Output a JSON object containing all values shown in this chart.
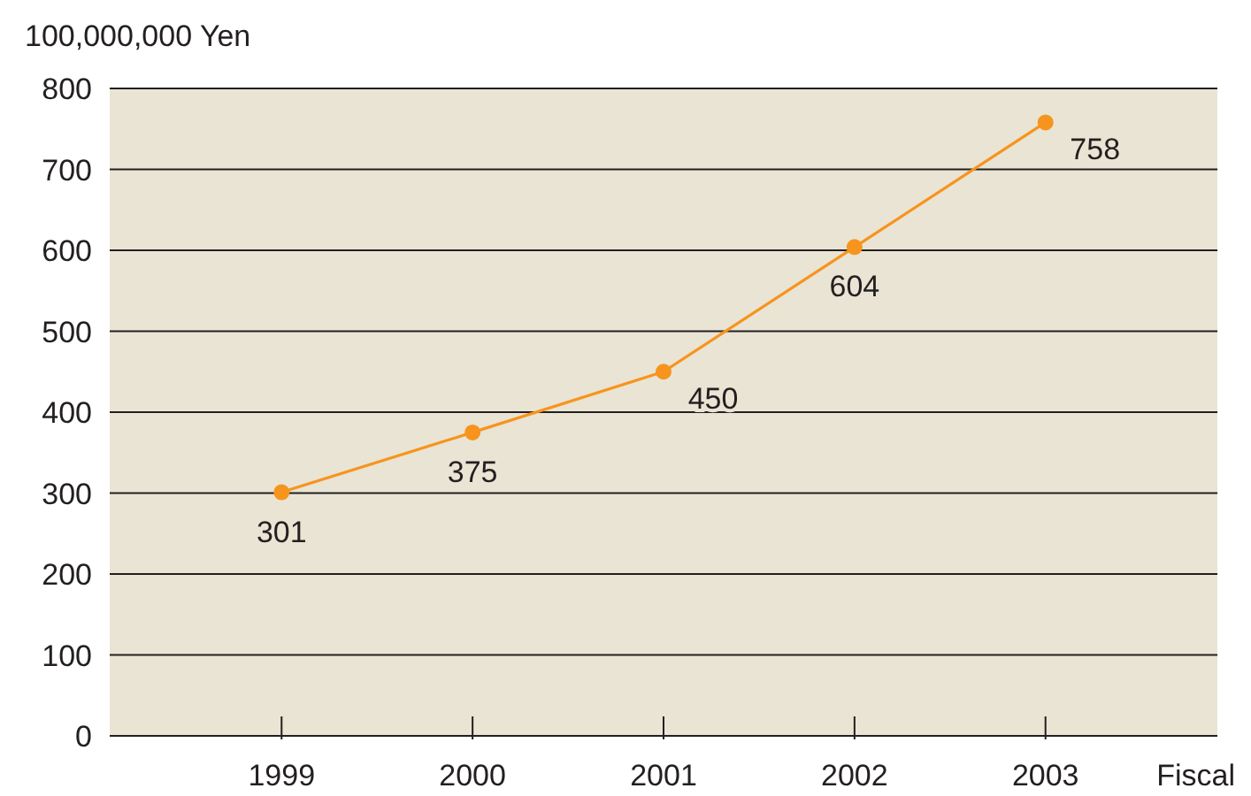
{
  "chart_data": {
    "type": "line",
    "ylabel": "100,000,000 Yen",
    "xlabel": "Fiscal",
    "categories": [
      "1999",
      "2000",
      "2001",
      "2002",
      "2003"
    ],
    "series": [
      {
        "color": "#f7941d",
        "values": [
          301,
          375,
          450,
          604,
          758
        ]
      }
    ],
    "ylim": [
      0,
      800
    ],
    "yticks": [
      0,
      100,
      200,
      300,
      400,
      500,
      600,
      700,
      800
    ],
    "grid": "y",
    "marker": "circle",
    "data_labels": true
  }
}
